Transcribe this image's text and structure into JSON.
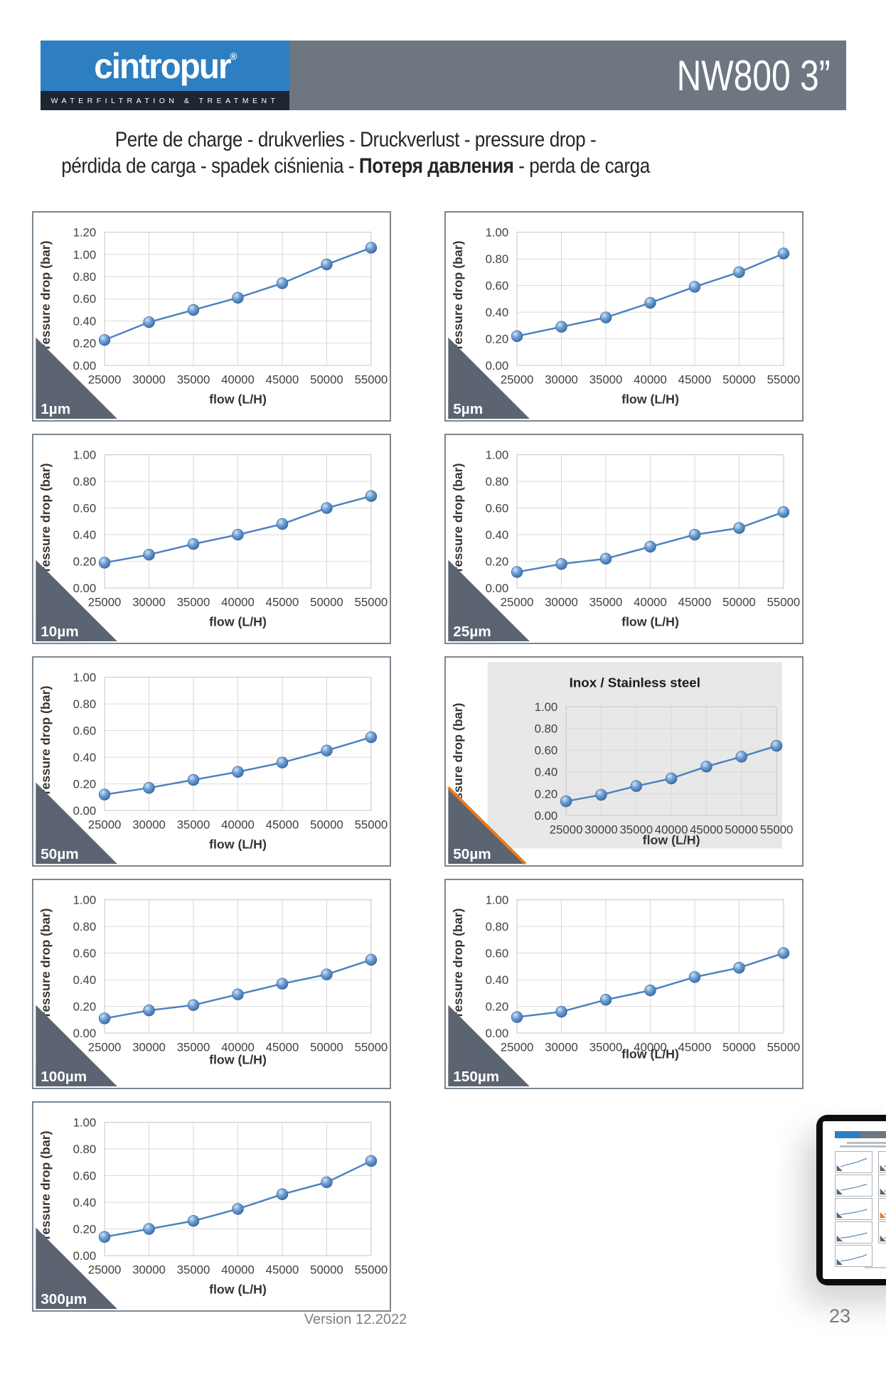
{
  "header": {
    "logo": {
      "brand": "cintropur",
      "registered": "®",
      "tagline": "WATERFILTRATION & TREATMENT",
      "blue": "#2e7fc2",
      "dark_band": "#1d2633"
    },
    "model": "NW800 3”",
    "bar_color": "#6d7681"
  },
  "title": {
    "line1": "Perte de charge - drukverlies - Druckverlust - pressure drop -",
    "line2_prefix": "pérdida de carga - spadek ciśnienia - ",
    "line2_bold": "Потеря давления",
    "line2_suffix": " - perda de carga"
  },
  "colors": {
    "line_blue": "#4e81c0",
    "marker_blue": "#3a6aa6",
    "grid_gray": "#d9d9d9",
    "wedge_gray": "#5b6470",
    "inox_bg": "#e8e8e8",
    "inox_orange": "#e87a24",
    "chart_border": "#7c8790",
    "axis_text": "#404040"
  },
  "chart_data": [
    {
      "type": "line",
      "label": "1µm",
      "variant": "standard",
      "title": "",
      "x": [
        25000,
        30000,
        35000,
        40000,
        45000,
        50000,
        55000
      ],
      "values": [
        0.23,
        0.39,
        0.5,
        0.61,
        0.74,
        0.91,
        1.06
      ],
      "ylim": [
        0,
        1.2
      ],
      "yticks": [
        "1.20",
        "1.00",
        "0.80",
        "0.60",
        "0.40",
        "0.20",
        "0.00"
      ],
      "xlabel": "flow (L/H)",
      "ylabel": "pressure drop (bar)"
    },
    {
      "type": "line",
      "label": "5µm",
      "variant": "standard",
      "title": "",
      "x": [
        25000,
        30000,
        35000,
        40000,
        45000,
        50000,
        55000
      ],
      "values": [
        0.22,
        0.29,
        0.36,
        0.47,
        0.59,
        0.7,
        0.84
      ],
      "ylim": [
        0,
        1.0
      ],
      "yticks": [
        "1.00",
        "0.80",
        "0.60",
        "0.40",
        "0.20",
        "0.00"
      ],
      "xlabel": "flow (L/H)",
      "ylabel": "pressure drop (bar)"
    },
    {
      "type": "line",
      "label": "10µm",
      "variant": "standard",
      "title": "",
      "x": [
        25000,
        30000,
        35000,
        40000,
        45000,
        50000,
        55000
      ],
      "values": [
        0.19,
        0.25,
        0.33,
        0.4,
        0.48,
        0.6,
        0.69
      ],
      "ylim": [
        0,
        1.0
      ],
      "yticks": [
        "1.00",
        "0.80",
        "0.60",
        "0.40",
        "0.20",
        "0.00"
      ],
      "xlabel": "flow (L/H)",
      "ylabel": "pressure drop (bar)"
    },
    {
      "type": "line",
      "label": "25µm",
      "variant": "standard",
      "title": "",
      "x": [
        25000,
        30000,
        35000,
        40000,
        45000,
        50000,
        55000
      ],
      "values": [
        0.12,
        0.18,
        0.22,
        0.31,
        0.4,
        0.45,
        0.57
      ],
      "ylim": [
        0,
        1.0
      ],
      "yticks": [
        "1.00",
        "0.80",
        "0.60",
        "0.40",
        "0.20",
        "0.00"
      ],
      "xlabel": "flow (L/H)",
      "ylabel": "pressure drop (bar)"
    },
    {
      "type": "line",
      "label": "50µm",
      "variant": "standard",
      "title": "",
      "x": [
        25000,
        30000,
        35000,
        40000,
        45000,
        50000,
        55000
      ],
      "values": [
        0.12,
        0.17,
        0.23,
        0.29,
        0.36,
        0.45,
        0.55
      ],
      "ylim": [
        0,
        1.0
      ],
      "yticks": [
        "1.00",
        "0.80",
        "0.60",
        "0.40",
        "0.20",
        "0.00"
      ],
      "xlabel": "flow (L/H)",
      "ylabel": "pressure drop (bar)"
    },
    {
      "type": "line",
      "label": "50µm",
      "variant": "inox",
      "title": "Inox / Stainless steel",
      "x": [
        25000,
        30000,
        35000,
        40000,
        45000,
        50000,
        55000
      ],
      "values": [
        0.13,
        0.19,
        0.27,
        0.34,
        0.45,
        0.54,
        0.64
      ],
      "ylim": [
        0,
        1.0
      ],
      "yticks": [
        "1.00",
        "0.80",
        "0.60",
        "0.40",
        "0.20",
        "0.00"
      ],
      "xlabel": "flow (L/H)",
      "ylabel": "pressure drop (bar)"
    },
    {
      "type": "line",
      "label": "100µm",
      "variant": "standard",
      "title": "",
      "x": [
        25000,
        30000,
        35000,
        40000,
        45000,
        50000,
        55000
      ],
      "values": [
        0.11,
        0.17,
        0.21,
        0.29,
        0.37,
        0.44,
        0.55
      ],
      "ylim": [
        0,
        1.0
      ],
      "yticks": [
        "1.00",
        "0.80",
        "0.60",
        "0.40",
        "0.20",
        "0.00"
      ],
      "xlabel": "flow (L/H)",
      "ylabel": "pressure drop (bar)"
    },
    {
      "type": "line",
      "label": "150µm",
      "variant": "standard",
      "title": "",
      "x": [
        25000,
        30000,
        35000,
        40000,
        45000,
        50000,
        55000
      ],
      "values": [
        0.12,
        0.16,
        0.25,
        0.32,
        0.42,
        0.49,
        0.6
      ],
      "ylim": [
        0,
        1.0
      ],
      "yticks": [
        "1.00",
        "0.80",
        "0.60",
        "0.40",
        "0.20",
        "0.00"
      ],
      "xlabel": "flow (L/H)",
      "ylabel": "pressure drop (bar)"
    },
    {
      "type": "line",
      "label": "300µm",
      "variant": "standard",
      "title": "",
      "x": [
        25000,
        30000,
        35000,
        40000,
        45000,
        50000,
        55000
      ],
      "values": [
        0.14,
        0.2,
        0.26,
        0.35,
        0.46,
        0.55,
        0.71
      ],
      "ylim": [
        0,
        1.0
      ],
      "yticks": [
        "1.00",
        "0.80",
        "0.60",
        "0.40",
        "0.20",
        "0.00"
      ],
      "xlabel": "flow (L/H)",
      "ylabel": "pressure drop (bar)"
    }
  ],
  "footer": {
    "version": "Version 12.2022",
    "page": "23"
  }
}
